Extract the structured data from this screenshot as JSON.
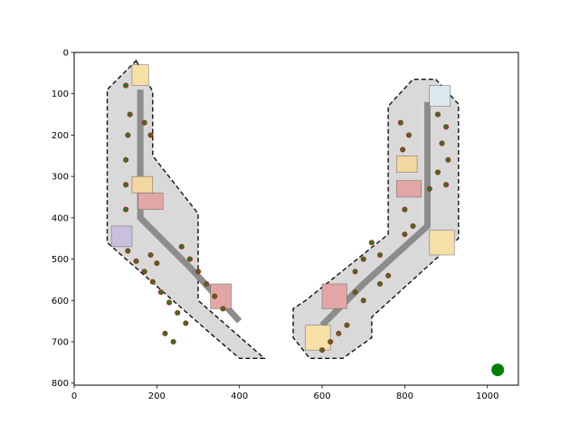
{
  "chart_data": {
    "type": "scatter",
    "xlim": [
      0,
      1075
    ],
    "ylim": [
      805,
      0
    ],
    "x_ticks": [
      0,
      200,
      400,
      600,
      800,
      1000
    ],
    "y_ticks": [
      0,
      100,
      200,
      300,
      400,
      500,
      600,
      700,
      800
    ],
    "x_tick_labels": [
      "0",
      "200",
      "400",
      "600",
      "800",
      "1000"
    ],
    "y_tick_labels": [
      "0",
      "100",
      "200",
      "300",
      "400",
      "500",
      "600",
      "700",
      "800"
    ],
    "grid": false,
    "background_image": "office-floor-plan",
    "floor_plan": {
      "left_wing_outline": [
        [
          150,
          20
        ],
        [
          190,
          95
        ],
        [
          190,
          250
        ],
        [
          300,
          390
        ],
        [
          300,
          600
        ],
        [
          460,
          740
        ],
        [
          400,
          740
        ],
        [
          330,
          680
        ],
        [
          80,
          460
        ],
        [
          80,
          90
        ]
      ],
      "right_wing_outline": [
        [
          875,
          65
        ],
        [
          930,
          125
        ],
        [
          930,
          450
        ],
        [
          720,
          640
        ],
        [
          720,
          690
        ],
        [
          650,
          740
        ],
        [
          570,
          740
        ],
        [
          530,
          690
        ],
        [
          530,
          620
        ],
        [
          560,
          600
        ],
        [
          760,
          440
        ],
        [
          760,
          130
        ],
        [
          820,
          65
        ]
      ],
      "corridors": [
        [
          [
            160,
            90
          ],
          [
            160,
            400
          ],
          [
            280,
            520
          ],
          [
            400,
            650
          ]
        ],
        [
          [
            855,
            120
          ],
          [
            855,
            420
          ],
          [
            700,
            560
          ],
          [
            600,
            660
          ]
        ]
      ],
      "plants_left": [
        [
          125,
          80
        ],
        [
          135,
          150
        ],
        [
          130,
          200
        ],
        [
          125,
          260
        ],
        [
          125,
          320
        ],
        [
          125,
          380
        ],
        [
          170,
          170
        ],
        [
          185,
          200
        ],
        [
          130,
          480
        ],
        [
          150,
          505
        ],
        [
          170,
          530
        ],
        [
          190,
          555
        ],
        [
          210,
          580
        ],
        [
          230,
          605
        ],
        [
          250,
          630
        ],
        [
          270,
          655
        ],
        [
          240,
          700
        ],
        [
          220,
          680
        ],
        [
          260,
          470
        ],
        [
          280,
          500
        ],
        [
          300,
          530
        ],
        [
          320,
          560
        ],
        [
          340,
          590
        ],
        [
          360,
          620
        ],
        [
          200,
          510
        ],
        [
          185,
          490
        ]
      ],
      "plants_right": [
        [
          790,
          170
        ],
        [
          810,
          200
        ],
        [
          795,
          235
        ],
        [
          880,
          150
        ],
        [
          900,
          180
        ],
        [
          890,
          220
        ],
        [
          905,
          260
        ],
        [
          880,
          290
        ],
        [
          800,
          380
        ],
        [
          720,
          460
        ],
        [
          740,
          490
        ],
        [
          700,
          500
        ],
        [
          680,
          530
        ],
        [
          680,
          580
        ],
        [
          700,
          600
        ],
        [
          740,
          560
        ],
        [
          760,
          540
        ],
        [
          620,
          700
        ],
        [
          640,
          680
        ],
        [
          660,
          660
        ],
        [
          600,
          720
        ],
        [
          820,
          420
        ],
        [
          800,
          440
        ],
        [
          860,
          330
        ],
        [
          900,
          320
        ]
      ]
    },
    "series": [
      {
        "x": [
          1025
        ],
        "y": [
          768
        ],
        "color": "#008000"
      }
    ]
  }
}
